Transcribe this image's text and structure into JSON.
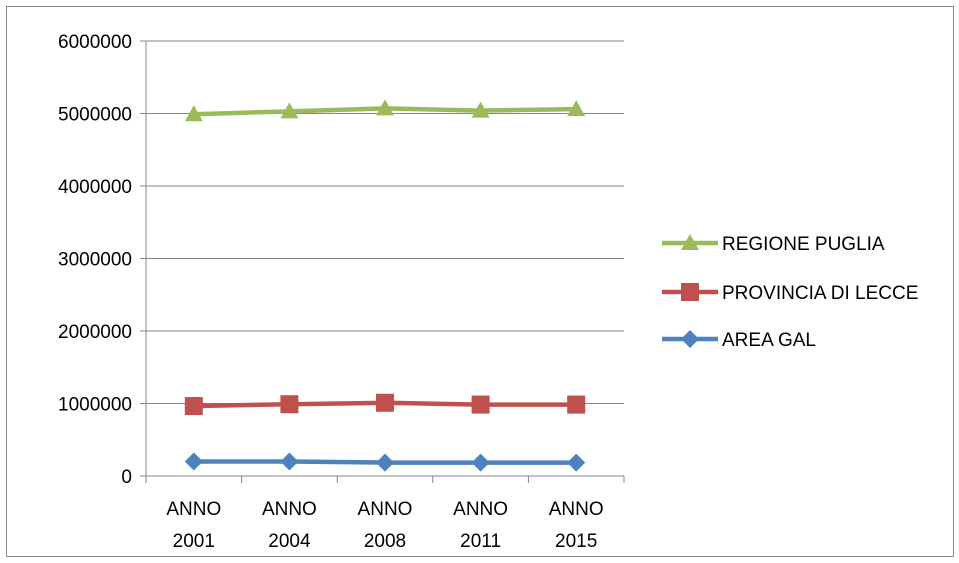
{
  "chart_data": {
    "type": "line",
    "title": "",
    "xlabel": "",
    "ylabel": "",
    "categories": [
      [
        "ANNO",
        "2001"
      ],
      [
        "ANNO",
        "2004"
      ],
      [
        "ANNO",
        "2008"
      ],
      [
        "ANNO",
        "2011"
      ],
      [
        "ANNO",
        "2015"
      ]
    ],
    "ylim": [
      0,
      6000000
    ],
    "yticks": [
      "0",
      "1000000",
      "2000000",
      "3000000",
      "4000000",
      "5000000",
      "6000000"
    ],
    "grid": true,
    "legend_position": "right",
    "series": [
      {
        "name": "REGIONE PUGLIA",
        "color": "#9BBB59",
        "marker": "triangle",
        "values": [
          4990000,
          5030000,
          5070000,
          5040000,
          5060000
        ]
      },
      {
        "name": "PROVINCIA DI LECCE",
        "color": "#C0504D",
        "marker": "square",
        "values": [
          965000,
          990000,
          1010000,
          985000,
          985000
        ]
      },
      {
        "name": "AREA GAL",
        "color": "#4F81BD",
        "marker": "diamond",
        "values": [
          200000,
          200000,
          185000,
          185000,
          185000
        ]
      }
    ]
  }
}
